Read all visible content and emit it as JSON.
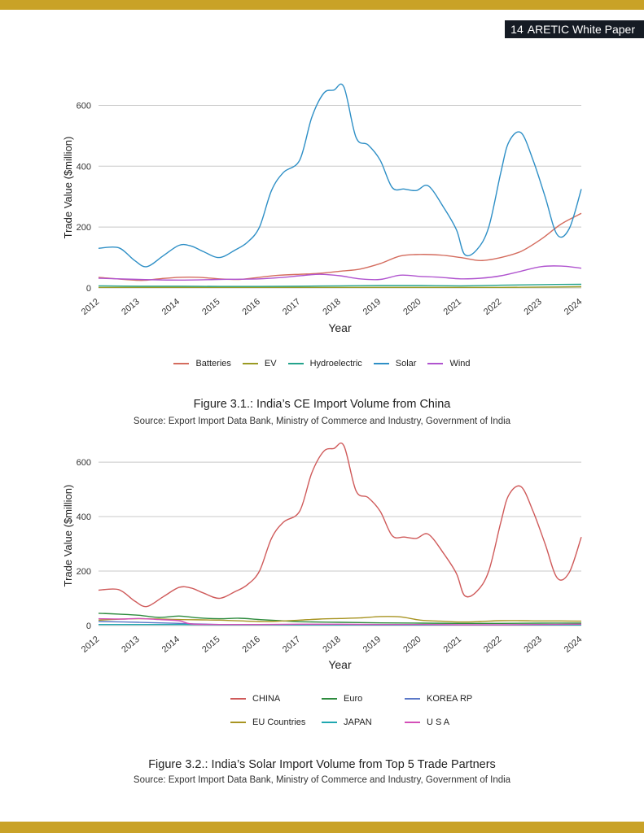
{
  "header": {
    "page_number": "14",
    "doc_title": "ARETIC White Paper",
    "accent": "#c9a227",
    "tag_bg": "#151b24"
  },
  "figure1": {
    "caption": "Figure 3.1.: India’s CE Import Volume from China",
    "source": "Source: Export Import Data Bank, Ministry of Commerce and Industry, Government of India"
  },
  "figure2": {
    "caption": "Figure 3.2.: India’s Solar Import Volume from Top 5 Trade Partners",
    "source": "Source: Export Import Data Bank, Ministry of Commerce and Industry, Government of India"
  },
  "chart_data": [
    {
      "type": "line",
      "xlabel": "Year",
      "ylabel": "Trade Value ($million)",
      "ylim": [
        0,
        660
      ],
      "yticks": [
        0,
        200,
        400,
        600
      ],
      "xlim": [
        2012,
        2024
      ],
      "xticks": [
        2012,
        2013,
        2014,
        2015,
        2016,
        2017,
        2018,
        2019,
        2020,
        2021,
        2022,
        2023,
        2024
      ],
      "grid": "horizontal",
      "legend_position": "bottom",
      "series": [
        {
          "name": "Batteries",
          "color": "#d46c5e",
          "x": [
            2012.0,
            2013.0,
            2013.5,
            2014.0,
            2014.5,
            2015.0,
            2015.5,
            2016.0,
            2016.5,
            2017.0,
            2017.5,
            2018.0,
            2018.5,
            2019.0,
            2019.5,
            2020.0,
            2020.5,
            2021.0,
            2021.5,
            2022.0,
            2022.5,
            2023.0,
            2023.5,
            2024.0
          ],
          "y": [
            35,
            25,
            30,
            35,
            35,
            30,
            28,
            35,
            42,
            45,
            48,
            55,
            62,
            80,
            105,
            110,
            108,
            100,
            90,
            100,
            120,
            160,
            210,
            245
          ]
        },
        {
          "name": "EV",
          "color": "#9a9a22",
          "x": [
            2012,
            2013,
            2014,
            2015,
            2016,
            2017,
            2018,
            2019,
            2020,
            2021,
            2022,
            2023,
            2024
          ],
          "y": [
            2,
            2,
            2,
            2,
            2,
            2,
            2,
            2,
            2,
            2,
            2,
            3,
            4
          ]
        },
        {
          "name": "Hydroelectric",
          "color": "#24a38c",
          "x": [
            2012,
            2013,
            2014,
            2015,
            2016,
            2017,
            2018,
            2019,
            2020,
            2021,
            2022,
            2023,
            2024
          ],
          "y": [
            7,
            6,
            6,
            5,
            5,
            6,
            7,
            8,
            8,
            7,
            9,
            11,
            12
          ]
        },
        {
          "name": "Solar",
          "color": "#2e8fc6",
          "x": [
            2012.0,
            2012.5,
            2012.9,
            2013.2,
            2013.6,
            2014.0,
            2014.3,
            2014.6,
            2015.0,
            2015.4,
            2015.7,
            2016.0,
            2016.3,
            2016.6,
            2017.0,
            2017.3,
            2017.6,
            2017.85,
            2018.1,
            2018.4,
            2018.7,
            2019.0,
            2019.3,
            2019.6,
            2019.9,
            2020.2,
            2020.6,
            2020.9,
            2021.1,
            2021.4,
            2021.7,
            2022.0,
            2022.2,
            2022.5,
            2022.8,
            2023.1,
            2023.4,
            2023.7,
            2024.0
          ],
          "y": [
            130,
            132,
            90,
            70,
            105,
            140,
            138,
            120,
            100,
            125,
            150,
            200,
            320,
            380,
            420,
            560,
            640,
            650,
            660,
            495,
            470,
            420,
            330,
            325,
            320,
            335,
            260,
            190,
            110,
            125,
            200,
            380,
            480,
            510,
            420,
            300,
            175,
            195,
            325
          ]
        },
        {
          "name": "Wind",
          "color": "#b054cf",
          "x": [
            2012.0,
            2013.0,
            2014.0,
            2015.0,
            2016.0,
            2016.6,
            2017.0,
            2017.5,
            2018.0,
            2018.5,
            2019.0,
            2019.5,
            2020.0,
            2020.5,
            2021.0,
            2021.5,
            2022.0,
            2022.5,
            2023.0,
            2023.5,
            2024.0
          ],
          "y": [
            32,
            28,
            26,
            28,
            30,
            35,
            40,
            45,
            40,
            30,
            28,
            42,
            38,
            35,
            30,
            32,
            40,
            55,
            70,
            72,
            65
          ]
        }
      ]
    },
    {
      "type": "line",
      "xlabel": "Year",
      "ylabel": "Trade Value ($million)",
      "ylim": [
        0,
        660
      ],
      "yticks": [
        0,
        200,
        400,
        600
      ],
      "xlim": [
        2012,
        2024
      ],
      "xticks": [
        2012,
        2013,
        2014,
        2015,
        2016,
        2017,
        2018,
        2019,
        2020,
        2021,
        2022,
        2023,
        2024
      ],
      "grid": "horizontal",
      "legend_position": "bottom",
      "series": [
        {
          "name": "CHINA",
          "color": "#cf5a5a",
          "x": [
            2012.0,
            2012.5,
            2012.9,
            2013.2,
            2013.6,
            2014.0,
            2014.3,
            2014.6,
            2015.0,
            2015.4,
            2015.7,
            2016.0,
            2016.3,
            2016.6,
            2017.0,
            2017.3,
            2017.6,
            2017.85,
            2018.1,
            2018.4,
            2018.7,
            2019.0,
            2019.3,
            2019.6,
            2019.9,
            2020.2,
            2020.6,
            2020.9,
            2021.1,
            2021.4,
            2021.7,
            2022.0,
            2022.2,
            2022.5,
            2022.8,
            2023.1,
            2023.4,
            2023.7,
            2024.0
          ],
          "y": [
            130,
            132,
            90,
            70,
            105,
            140,
            138,
            120,
            100,
            125,
            150,
            200,
            320,
            380,
            420,
            560,
            640,
            650,
            660,
            495,
            470,
            420,
            330,
            325,
            320,
            335,
            260,
            190,
            110,
            125,
            200,
            380,
            480,
            510,
            420,
            300,
            175,
            195,
            325
          ]
        },
        {
          "name": "Euro",
          "color": "#2e8b3e",
          "x": [
            2012.0,
            2012.5,
            2013.0,
            2013.5,
            2014.0,
            2014.5,
            2015.0,
            2015.5,
            2016.0,
            2016.5,
            2017.0,
            2018.0,
            2019.0,
            2020.0,
            2021.0,
            2022.0,
            2023.0,
            2024.0
          ],
          "y": [
            45,
            42,
            38,
            30,
            35,
            28,
            25,
            27,
            22,
            18,
            14,
            12,
            10,
            9,
            8,
            8,
            9,
            9
          ]
        },
        {
          "name": "KOREA RP",
          "color": "#5b78c8",
          "x": [
            2012,
            2013,
            2014,
            2015,
            2016,
            2017,
            2018,
            2019,
            2020,
            2021,
            2022,
            2023,
            2024
          ],
          "y": [
            15,
            12,
            8,
            4,
            4,
            3,
            3,
            3,
            2,
            2,
            2,
            3,
            3
          ]
        },
        {
          "name": "EU Countries",
          "color": "#a89422",
          "x": [
            2012.0,
            2013.0,
            2014.0,
            2015.0,
            2016.0,
            2016.5,
            2017.0,
            2017.5,
            2018.0,
            2018.5,
            2019.0,
            2019.5,
            2020.0,
            2020.5,
            2021.0,
            2021.5,
            2022.0,
            2022.5,
            2023.0,
            2023.5,
            2024.0
          ],
          "y": [
            20,
            25,
            22,
            20,
            15,
            16,
            20,
            24,
            26,
            28,
            33,
            32,
            20,
            16,
            13,
            15,
            18,
            18,
            17,
            17,
            16
          ]
        },
        {
          "name": "JAPAN",
          "color": "#1fa7b0",
          "x": [
            2012,
            2013,
            2014,
            2015,
            2016,
            2017,
            2018,
            2019,
            2020,
            2021,
            2022,
            2023,
            2024
          ],
          "y": [
            4,
            4,
            4,
            3,
            3,
            3,
            3,
            2,
            2,
            2,
            2,
            2,
            2
          ]
        },
        {
          "name": "U S A",
          "color": "#d44fb8",
          "x": [
            2012.0,
            2012.6,
            2013.0,
            2013.5,
            2014.0,
            2014.3,
            2015.0,
            2016.0,
            2017.0,
            2018.0,
            2019.0,
            2020.0,
            2021.0,
            2022.0,
            2023.0,
            2024.0
          ],
          "y": [
            25,
            24,
            26,
            22,
            18,
            6,
            4,
            4,
            5,
            5,
            4,
            4,
            3,
            3,
            4,
            5
          ]
        }
      ]
    }
  ]
}
